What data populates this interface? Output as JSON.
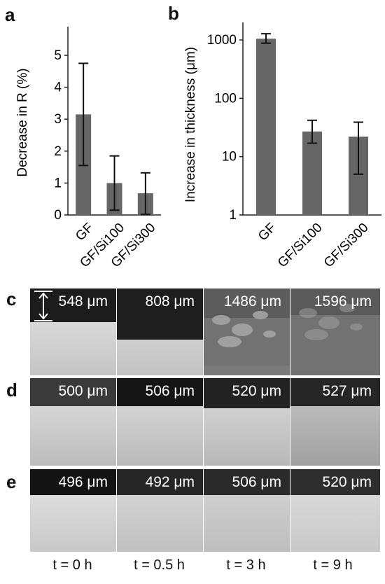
{
  "panels": {
    "a": "a",
    "b": "b",
    "c": "c",
    "d": "d",
    "e": "e"
  },
  "chart_data": [
    {
      "type": "bar",
      "panel": "a",
      "categories": [
        "GF",
        "GF/Si100",
        "GF/Si300"
      ],
      "values": [
        3.15,
        1.0,
        0.68
      ],
      "error_low": [
        1.55,
        0.15,
        0.02
      ],
      "error_high": [
        4.75,
        1.85,
        1.32
      ],
      "ylabel": "Decrease in R (%)",
      "xlabel": "",
      "ylim": [
        0,
        5.9
      ],
      "yticks": [
        "0",
        "1",
        "2",
        "3",
        "4",
        "5"
      ],
      "bar_color": "#666666",
      "grid": false
    },
    {
      "type": "bar",
      "panel": "b",
      "categories": [
        "GF",
        "GF/Si100",
        "GF/Si300"
      ],
      "values": [
        1050,
        27,
        22
      ],
      "error_low": [
        880,
        17,
        5
      ],
      "error_high": [
        1280,
        42,
        39
      ],
      "ylabel": "Increase in thickness (μm)",
      "xlabel": "",
      "yscale": "log",
      "ylim": [
        1,
        2000
      ],
      "yticks": [
        "1",
        "10",
        "100",
        "1000"
      ],
      "bar_color": "#666666",
      "grid": false
    }
  ],
  "micrographs": {
    "rows": [
      {
        "row": "c",
        "labels": [
          "548 μm",
          "808 μm",
          "1486 μm",
          "1596 μm"
        ],
        "scale_marker": true
      },
      {
        "row": "d",
        "labels": [
          "500 μm",
          "506 μm",
          "520 μm",
          "527 μm"
        ]
      },
      {
        "row": "e",
        "labels": [
          "496 μm",
          "492 μm",
          "506 μm",
          "520 μm"
        ]
      }
    ],
    "times": [
      "t = 0 h",
      "t = 0.5 h",
      "t = 3 h",
      "t = 9 h"
    ]
  }
}
